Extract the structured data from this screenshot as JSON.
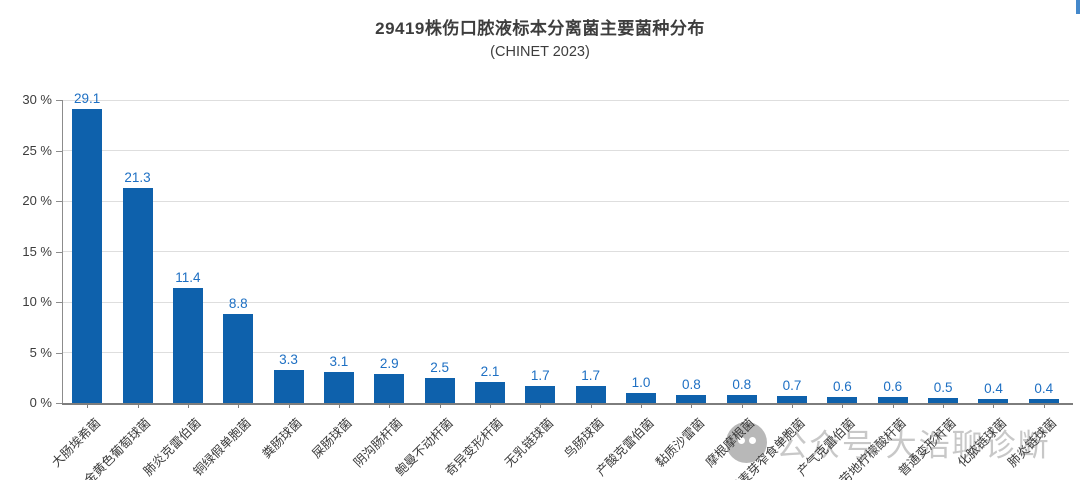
{
  "chart_data": {
    "type": "bar",
    "title": "29419株伤口脓液标本分离菌主要菌种分布",
    "subtitle": "(CHINET 2023)",
    "categories": [
      "大肠埃希菌",
      "金黄色葡萄球菌",
      "肺炎克雷伯菌",
      "铜绿假单胞菌",
      "粪肠球菌",
      "屎肠球菌",
      "阴沟肠杆菌",
      "鲍曼不动杆菌",
      "奇异变形杆菌",
      "无乳链球菌",
      "鸟肠球菌",
      "产酸克雷伯菌",
      "黏质沙雷菌",
      "摩根摩根菌",
      "嗜麦芽窄食单胞菌",
      "产气克雷伯菌",
      "弗劳地柠檬酸杆菌",
      "普通变形杆菌",
      "化脓链球菌",
      "肺炎链球菌"
    ],
    "values": [
      29.1,
      21.3,
      11.4,
      8.8,
      3.3,
      3.1,
      2.9,
      2.5,
      2.1,
      1.7,
      1.7,
      1.0,
      0.8,
      0.8,
      0.7,
      0.6,
      0.6,
      0.5,
      0.4,
      0.4
    ],
    "xlabel": "",
    "ylabel": "",
    "ylim": [
      0,
      30
    ],
    "yticks": [
      0,
      5,
      10,
      15,
      20,
      25,
      30
    ],
    "ytick_suffix": " %",
    "grid": true,
    "legend": "none",
    "bar_color": "#0e61ac",
    "value_label_color": "#1d6fc3"
  },
  "watermark": {
    "icon": "wechat-icon",
    "label": "公众号 大浩聊诊断"
  }
}
